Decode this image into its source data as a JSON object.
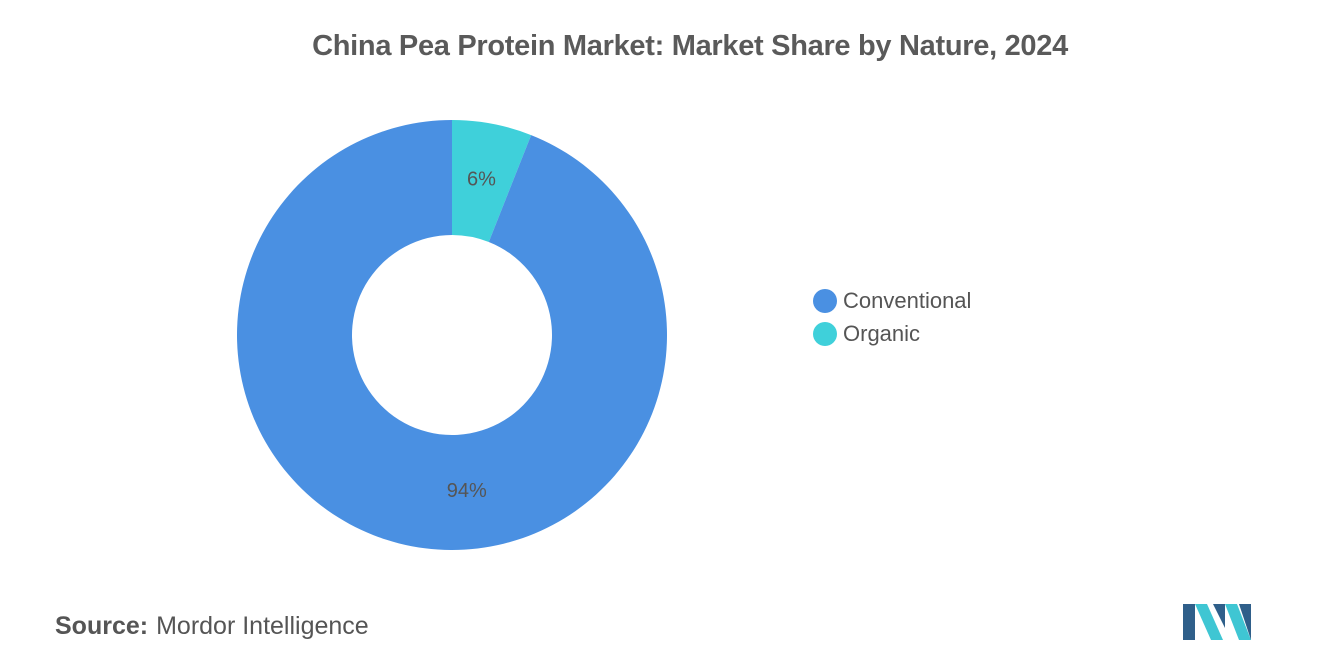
{
  "chart_data": {
    "type": "pie",
    "title": "China Pea Protein Market: Market Share by Nature, 2024",
    "categories": [
      "Conventional",
      "Organic"
    ],
    "values": [
      94,
      6
    ],
    "value_labels": [
      "94%",
      "6%"
    ],
    "colors": [
      "#4a90e2",
      "#3fd0da"
    ],
    "legend_position": "right"
  },
  "source": {
    "label": "Source:",
    "name": "Mordor Intelligence"
  },
  "logo": {
    "icon": "mordor-intelligence-logo",
    "colors": [
      "#2f5f8a",
      "#3fc6d3"
    ]
  }
}
